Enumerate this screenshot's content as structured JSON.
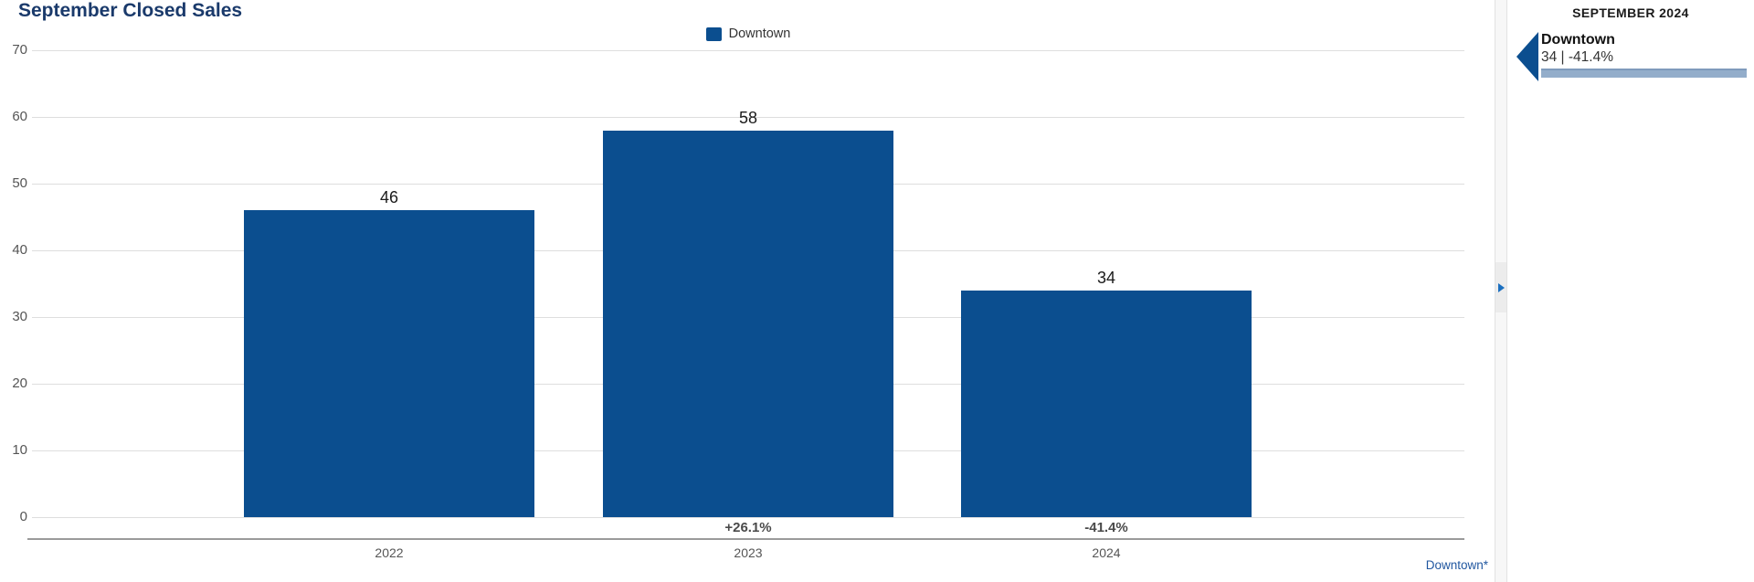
{
  "colors": {
    "bar_blue": "#0b4e8f",
    "title_navy": "#1a3a6b",
    "link_blue": "#2157a0",
    "accent_bar": "#93adca",
    "arrow_blue": "#1b6fc0"
  },
  "chart_data": {
    "type": "bar",
    "title": "September Closed Sales",
    "legend": [
      "Downtown"
    ],
    "legend_position": "top-center",
    "categories": [
      "2022",
      "2023",
      "2024"
    ],
    "series": [
      {
        "name": "Downtown",
        "values": [
          46,
          58,
          34
        ]
      }
    ],
    "value_labels": [
      "46",
      "58",
      "34"
    ],
    "change_labels": [
      "",
      "+26.1%",
      "-41.4%"
    ],
    "ylim": [
      0,
      70
    ],
    "yticks": [
      0,
      10,
      20,
      30,
      40,
      50,
      60,
      70
    ],
    "grid": true,
    "xlabel": "",
    "ylabel": "",
    "footnote": "Downtown*"
  },
  "toggle": {
    "tooltip_icon": "chevron-right"
  },
  "sidebar": {
    "header": "SEPTEMBER 2024",
    "entries": [
      {
        "name": "Downtown",
        "stat": "34 | -41.4%"
      }
    ]
  }
}
